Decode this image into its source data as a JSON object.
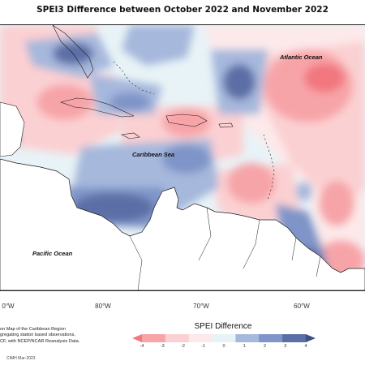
{
  "title": "SPEI3 Difference between October 2022 and November 2022",
  "labels": {
    "atlantic": "Atlantic Ocean",
    "caribbean": "Caribbean Sea",
    "pacific": "Pacific Ocean"
  },
  "longitudes": [
    "0°W",
    "80°W",
    "70°W",
    "60°W"
  ],
  "credit": {
    "line1": "on Map of the Caribbean Region",
    "line2": "gregating station based observations,",
    "line3": "CF, with NCEP/NCAR Reanalysis Data.",
    "tag": "CIMH Mar-2023"
  },
  "legend": {
    "title": "SPEI Difference",
    "ticks": [
      "-4",
      "-3",
      "-2",
      "-1",
      "0",
      "1",
      "2",
      "3",
      "4"
    ],
    "colors": [
      "#f2777f",
      "#f7a4a8",
      "#fbd0d2",
      "#fde9ea",
      "#e8f3f7",
      "#a6b8dc",
      "#7f94c8",
      "#5b6ea6",
      "#3f4f82"
    ]
  },
  "colors": {
    "land": "#ffffff",
    "coast": "#1a1a1a",
    "neutral": "#e8f3f7"
  }
}
